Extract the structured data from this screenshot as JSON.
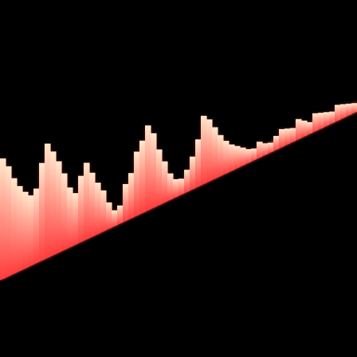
{
  "visualizer": {
    "background_color": "#000000",
    "bar_base_color": "#ff3b3b",
    "bar_tip_color": "#ffe8cc",
    "glow_color": "#ff5555",
    "bar_count": 64,
    "levels": [
      0.55,
      0.5,
      0.43,
      0.38,
      0.34,
      0.31,
      0.33,
      0.44,
      0.52,
      0.47,
      0.41,
      0.34,
      0.26,
      0.22,
      0.29,
      0.34,
      0.28,
      0.22,
      0.17,
      0.1,
      0.05,
      0.06,
      0.15,
      0.19,
      0.28,
      0.32,
      0.38,
      0.33,
      0.24,
      0.17,
      0.1,
      0.06,
      0.05,
      0.08,
      0.13,
      0.2,
      0.3,
      0.27,
      0.22,
      0.17,
      0.13,
      0.1,
      0.08,
      0.06,
      0.04,
      0.03,
      0.05,
      0.03,
      0.02,
      0.04,
      0.06,
      0.05,
      0.04,
      0.07,
      0.05,
      0.03,
      0.06,
      0.05,
      0.04,
      0.03,
      0.05,
      0.04,
      0.03,
      0.02
    ]
  }
}
